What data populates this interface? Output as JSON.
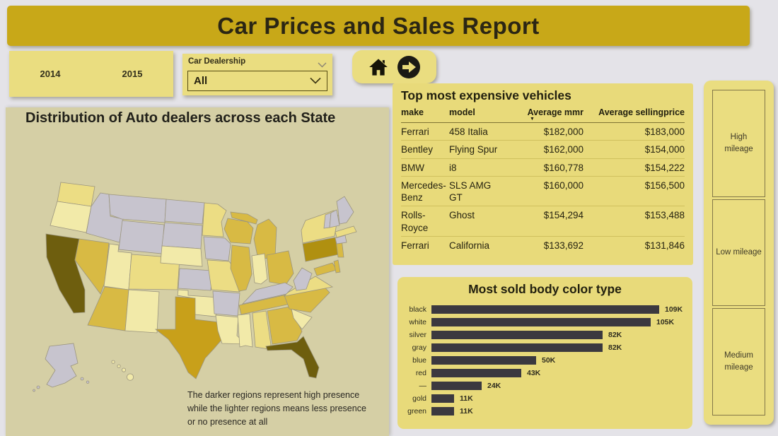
{
  "header": {
    "title": "Car Prices and Sales Report"
  },
  "filters": {
    "years": [
      "2014",
      "2015"
    ],
    "dealership": {
      "label": "Car Dealership",
      "value": "All"
    }
  },
  "map_panel": {
    "title": "Distribution of Auto dealers across each State",
    "note_lines": [
      "The darker regions represent high presence",
      "while the lighter regions means less presence",
      "or no presence at all"
    ],
    "level_colors": {
      "none": "#c7c4ce",
      "very_low": "#f2eaa9",
      "low": "#ecdd84",
      "medium": "#d8ba44",
      "high": "#c8a01a",
      "higher": "#b09010",
      "very_high": "#6e5e0e"
    },
    "states": [
      {
        "id": "WA",
        "level": "low"
      },
      {
        "id": "OR",
        "level": "very_low"
      },
      {
        "id": "CA",
        "level": "very_high"
      },
      {
        "id": "NV",
        "level": "medium"
      },
      {
        "id": "ID",
        "level": "none"
      },
      {
        "id": "MT",
        "level": "none"
      },
      {
        "id": "WY",
        "level": "none"
      },
      {
        "id": "UT",
        "level": "very_low"
      },
      {
        "id": "CO",
        "level": "low"
      },
      {
        "id": "AZ",
        "level": "medium"
      },
      {
        "id": "NM",
        "level": "very_low"
      },
      {
        "id": "ND",
        "level": "none"
      },
      {
        "id": "SD",
        "level": "none"
      },
      {
        "id": "NE",
        "level": "very_low"
      },
      {
        "id": "KS",
        "level": "none"
      },
      {
        "id": "OK",
        "level": "very_low"
      },
      {
        "id": "TX",
        "level": "high"
      },
      {
        "id": "MN",
        "level": "low"
      },
      {
        "id": "IA",
        "level": "none"
      },
      {
        "id": "MO",
        "level": "low"
      },
      {
        "id": "AR",
        "level": "none"
      },
      {
        "id": "LA",
        "level": "very_low"
      },
      {
        "id": "WI",
        "level": "medium"
      },
      {
        "id": "MI",
        "level": "medium"
      },
      {
        "id": "IL",
        "level": "medium"
      },
      {
        "id": "IN",
        "level": "very_low"
      },
      {
        "id": "OH",
        "level": "medium"
      },
      {
        "id": "KY",
        "level": "none"
      },
      {
        "id": "TN",
        "level": "medium"
      },
      {
        "id": "MS",
        "level": "very_low"
      },
      {
        "id": "AL",
        "level": "low"
      },
      {
        "id": "GA",
        "level": "medium"
      },
      {
        "id": "FL",
        "level": "very_high"
      },
      {
        "id": "SC",
        "level": "very_low"
      },
      {
        "id": "NC",
        "level": "medium"
      },
      {
        "id": "VA",
        "level": "low"
      },
      {
        "id": "WV",
        "level": "none"
      },
      {
        "id": "PA",
        "level": "higher"
      },
      {
        "id": "NY",
        "level": "low"
      },
      {
        "id": "NJ",
        "level": "medium"
      },
      {
        "id": "MD",
        "level": "medium"
      },
      {
        "id": "DE",
        "level": "medium"
      },
      {
        "id": "MA",
        "level": "low"
      },
      {
        "id": "CT",
        "level": "none"
      },
      {
        "id": "VT",
        "level": "none"
      },
      {
        "id": "NH",
        "level": "none"
      },
      {
        "id": "ME",
        "level": "none"
      },
      {
        "id": "AK",
        "level": "none"
      },
      {
        "id": "HI",
        "level": "very_low"
      }
    ]
  },
  "table_panel": {
    "title": "Top most expensive vehicles",
    "columns": [
      "make",
      "model",
      "Average mmr",
      "Average sellingprice"
    ],
    "sort_column": "Average mmr",
    "sort_indicator": "▼",
    "rows": [
      {
        "make": "Ferrari",
        "model": "458 Italia",
        "mmr": "$182,000",
        "price": "$183,000"
      },
      {
        "make": "Bentley",
        "model": "Flying Spur",
        "mmr": "$162,000",
        "price": "$154,000"
      },
      {
        "make": "BMW",
        "model": "i8",
        "mmr": "$160,778",
        "price": "$154,222"
      },
      {
        "make": "Mercedes-Benz",
        "model": "SLS AMG GT",
        "mmr": "$160,000",
        "price": "$156,500"
      },
      {
        "make": "Rolls-Royce",
        "model": "Ghost",
        "mmr": "$154,294",
        "price": "$153,488"
      },
      {
        "make": "Ferrari",
        "model": "California",
        "mmr": "$133,692",
        "price": "$131,846"
      }
    ]
  },
  "chart_data": {
    "type": "bar",
    "orientation": "horizontal",
    "title": "Most sold body color type",
    "categories": [
      "black",
      "white",
      "silver",
      "gray",
      "blue",
      "red",
      "—",
      "gold",
      "green"
    ],
    "values": [
      109000,
      105000,
      82000,
      82000,
      50000,
      43000,
      24000,
      11000,
      11000
    ],
    "value_labels": [
      "109K",
      "105K",
      "82K",
      "82K",
      "50K",
      "43K",
      "24K",
      "11K",
      "11K"
    ],
    "xlim": [
      0,
      115000
    ],
    "bar_color": "#3b393f",
    "grid": false,
    "legend": false
  },
  "mileage_panel": {
    "buttons": [
      "High mileage",
      "Low mileage",
      "Medium mileage"
    ]
  },
  "colors": {
    "page_bg": "#e4e3e8",
    "header_band": "#c8a818",
    "card_yellow": "#eadd80",
    "panel_yellow": "#e8da7a",
    "map_bg": "#d5cfa5",
    "bar_fill": "#3b393f",
    "title_text": "#2b2614"
  }
}
